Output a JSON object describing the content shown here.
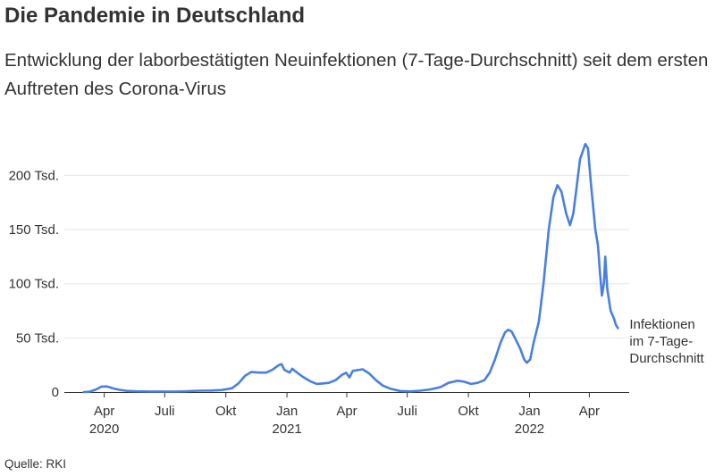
{
  "header": {
    "title": "Die Pandemie in Deutschland",
    "subtitle": "Entwicklung der laborbestätigten Neuinfektionen (7-Tage-Durchschnitt) seit dem ersten Auftreten des Corona-Virus"
  },
  "footer": {
    "source": "Quelle: RKI"
  },
  "colors": {
    "line": "#4a7fe0",
    "grid": "#e6e6e6",
    "axis": "#333333",
    "text": "#333333"
  },
  "chart_data": {
    "type": "line",
    "title": "Die Pandemie in Deutschland",
    "subtitle": "Entwicklung der laborbestätigten Neuinfektionen (7-Tage-Durchschnitt) seit dem ersten Auftreten des Corona-Virus",
    "xlabel": "",
    "ylabel": "",
    "ylim": [
      0,
      230000
    ],
    "xlim": [
      "2020-02-01",
      "2022-05-31"
    ],
    "grid": true,
    "legend": "none",
    "y_ticks": [
      {
        "value": 0,
        "label": "0"
      },
      {
        "value": 50000,
        "label": "50 Tsd."
      },
      {
        "value": 100000,
        "label": "100 Tsd."
      },
      {
        "value": 150000,
        "label": "150 Tsd."
      },
      {
        "value": 200000,
        "label": "200 Tsd."
      }
    ],
    "x_ticks": [
      {
        "date": "2020-04-01",
        "label": "Apr",
        "year": "2020"
      },
      {
        "date": "2020-07-01",
        "label": "Juli",
        "year": ""
      },
      {
        "date": "2020-10-01",
        "label": "Okt",
        "year": ""
      },
      {
        "date": "2021-01-01",
        "label": "Jan",
        "year": "2021"
      },
      {
        "date": "2021-04-01",
        "label": "Apr",
        "year": ""
      },
      {
        "date": "2021-07-01",
        "label": "Juli",
        "year": ""
      },
      {
        "date": "2021-10-01",
        "label": "Okt",
        "year": ""
      },
      {
        "date": "2022-01-01",
        "label": "Jan",
        "year": "2022"
      },
      {
        "date": "2022-04-01",
        "label": "Apr",
        "year": ""
      }
    ],
    "series": [
      {
        "name": "Infektionen im 7-Tage-Durchschnitt",
        "label_lines": [
          "Infektionen",
          "im 7-Tage-",
          "Durchschnitt"
        ],
        "points": [
          [
            "2020-03-01",
            0
          ],
          [
            "2020-03-10",
            300
          ],
          [
            "2020-03-20",
            2500
          ],
          [
            "2020-03-28",
            5000
          ],
          [
            "2020-04-05",
            5200
          ],
          [
            "2020-04-15",
            3300
          ],
          [
            "2020-04-25",
            2000
          ],
          [
            "2020-05-05",
            1100
          ],
          [
            "2020-05-20",
            700
          ],
          [
            "2020-06-10",
            500
          ],
          [
            "2020-06-25",
            500
          ],
          [
            "2020-07-15",
            450
          ],
          [
            "2020-08-01",
            700
          ],
          [
            "2020-08-20",
            1200
          ],
          [
            "2020-09-10",
            1400
          ],
          [
            "2020-09-25",
            1900
          ],
          [
            "2020-10-10",
            3500
          ],
          [
            "2020-10-20",
            8000
          ],
          [
            "2020-10-30",
            15000
          ],
          [
            "2020-11-08",
            18500
          ],
          [
            "2020-11-20",
            18000
          ],
          [
            "2020-12-01",
            18000
          ],
          [
            "2020-12-10",
            20500
          ],
          [
            "2020-12-20",
            25000
          ],
          [
            "2020-12-24",
            25800
          ],
          [
            "2020-12-28",
            20500
          ],
          [
            "2021-01-05",
            18000
          ],
          [
            "2021-01-09",
            21500
          ],
          [
            "2021-01-15",
            18500
          ],
          [
            "2021-01-25",
            14000
          ],
          [
            "2021-02-05",
            10000
          ],
          [
            "2021-02-15",
            7500
          ],
          [
            "2021-02-25",
            8000
          ],
          [
            "2021-03-05",
            8500
          ],
          [
            "2021-03-15",
            11000
          ],
          [
            "2021-03-25",
            16000
          ],
          [
            "2021-03-31",
            17800
          ],
          [
            "2021-04-05",
            13500
          ],
          [
            "2021-04-10",
            19500
          ],
          [
            "2021-04-20",
            20500
          ],
          [
            "2021-04-25",
            21000
          ],
          [
            "2021-05-05",
            17000
          ],
          [
            "2021-05-15",
            11000
          ],
          [
            "2021-05-25",
            6000
          ],
          [
            "2021-06-05",
            3200
          ],
          [
            "2021-06-20",
            1000
          ],
          [
            "2021-07-05",
            600
          ],
          [
            "2021-07-20",
            1200
          ],
          [
            "2021-08-05",
            2500
          ],
          [
            "2021-08-20",
            4500
          ],
          [
            "2021-09-01",
            8500
          ],
          [
            "2021-09-15",
            10500
          ],
          [
            "2021-09-25",
            9500
          ],
          [
            "2021-10-05",
            7500
          ],
          [
            "2021-10-15",
            8500
          ],
          [
            "2021-10-25",
            11000
          ],
          [
            "2021-11-02",
            18000
          ],
          [
            "2021-11-10",
            30000
          ],
          [
            "2021-11-18",
            45000
          ],
          [
            "2021-11-25",
            55000
          ],
          [
            "2021-11-30",
            57500
          ],
          [
            "2021-12-05",
            56000
          ],
          [
            "2021-12-10",
            50000
          ],
          [
            "2021-12-18",
            40000
          ],
          [
            "2021-12-24",
            30000
          ],
          [
            "2021-12-28",
            27000
          ],
          [
            "2022-01-02",
            30000
          ],
          [
            "2022-01-07",
            45000
          ],
          [
            "2022-01-15",
            65000
          ],
          [
            "2022-01-22",
            100000
          ],
          [
            "2022-01-30",
            150000
          ],
          [
            "2022-02-06",
            180000
          ],
          [
            "2022-02-12",
            191000
          ],
          [
            "2022-02-18",
            185000
          ],
          [
            "2022-02-25",
            165000
          ],
          [
            "2022-03-03",
            154000
          ],
          [
            "2022-03-08",
            165000
          ],
          [
            "2022-03-13",
            190000
          ],
          [
            "2022-03-18",
            215000
          ],
          [
            "2022-03-21",
            220000
          ],
          [
            "2022-03-26",
            229000
          ],
          [
            "2022-03-30",
            225000
          ],
          [
            "2022-04-03",
            195000
          ],
          [
            "2022-04-10",
            150000
          ],
          [
            "2022-04-14",
            135000
          ],
          [
            "2022-04-17",
            110000
          ],
          [
            "2022-04-20",
            89000
          ],
          [
            "2022-04-23",
            100000
          ],
          [
            "2022-04-25",
            125000
          ],
          [
            "2022-04-28",
            95000
          ],
          [
            "2022-05-03",
            75000
          ],
          [
            "2022-05-08",
            68000
          ],
          [
            "2022-05-11",
            62000
          ],
          [
            "2022-05-14",
            59000
          ]
        ]
      }
    ]
  }
}
